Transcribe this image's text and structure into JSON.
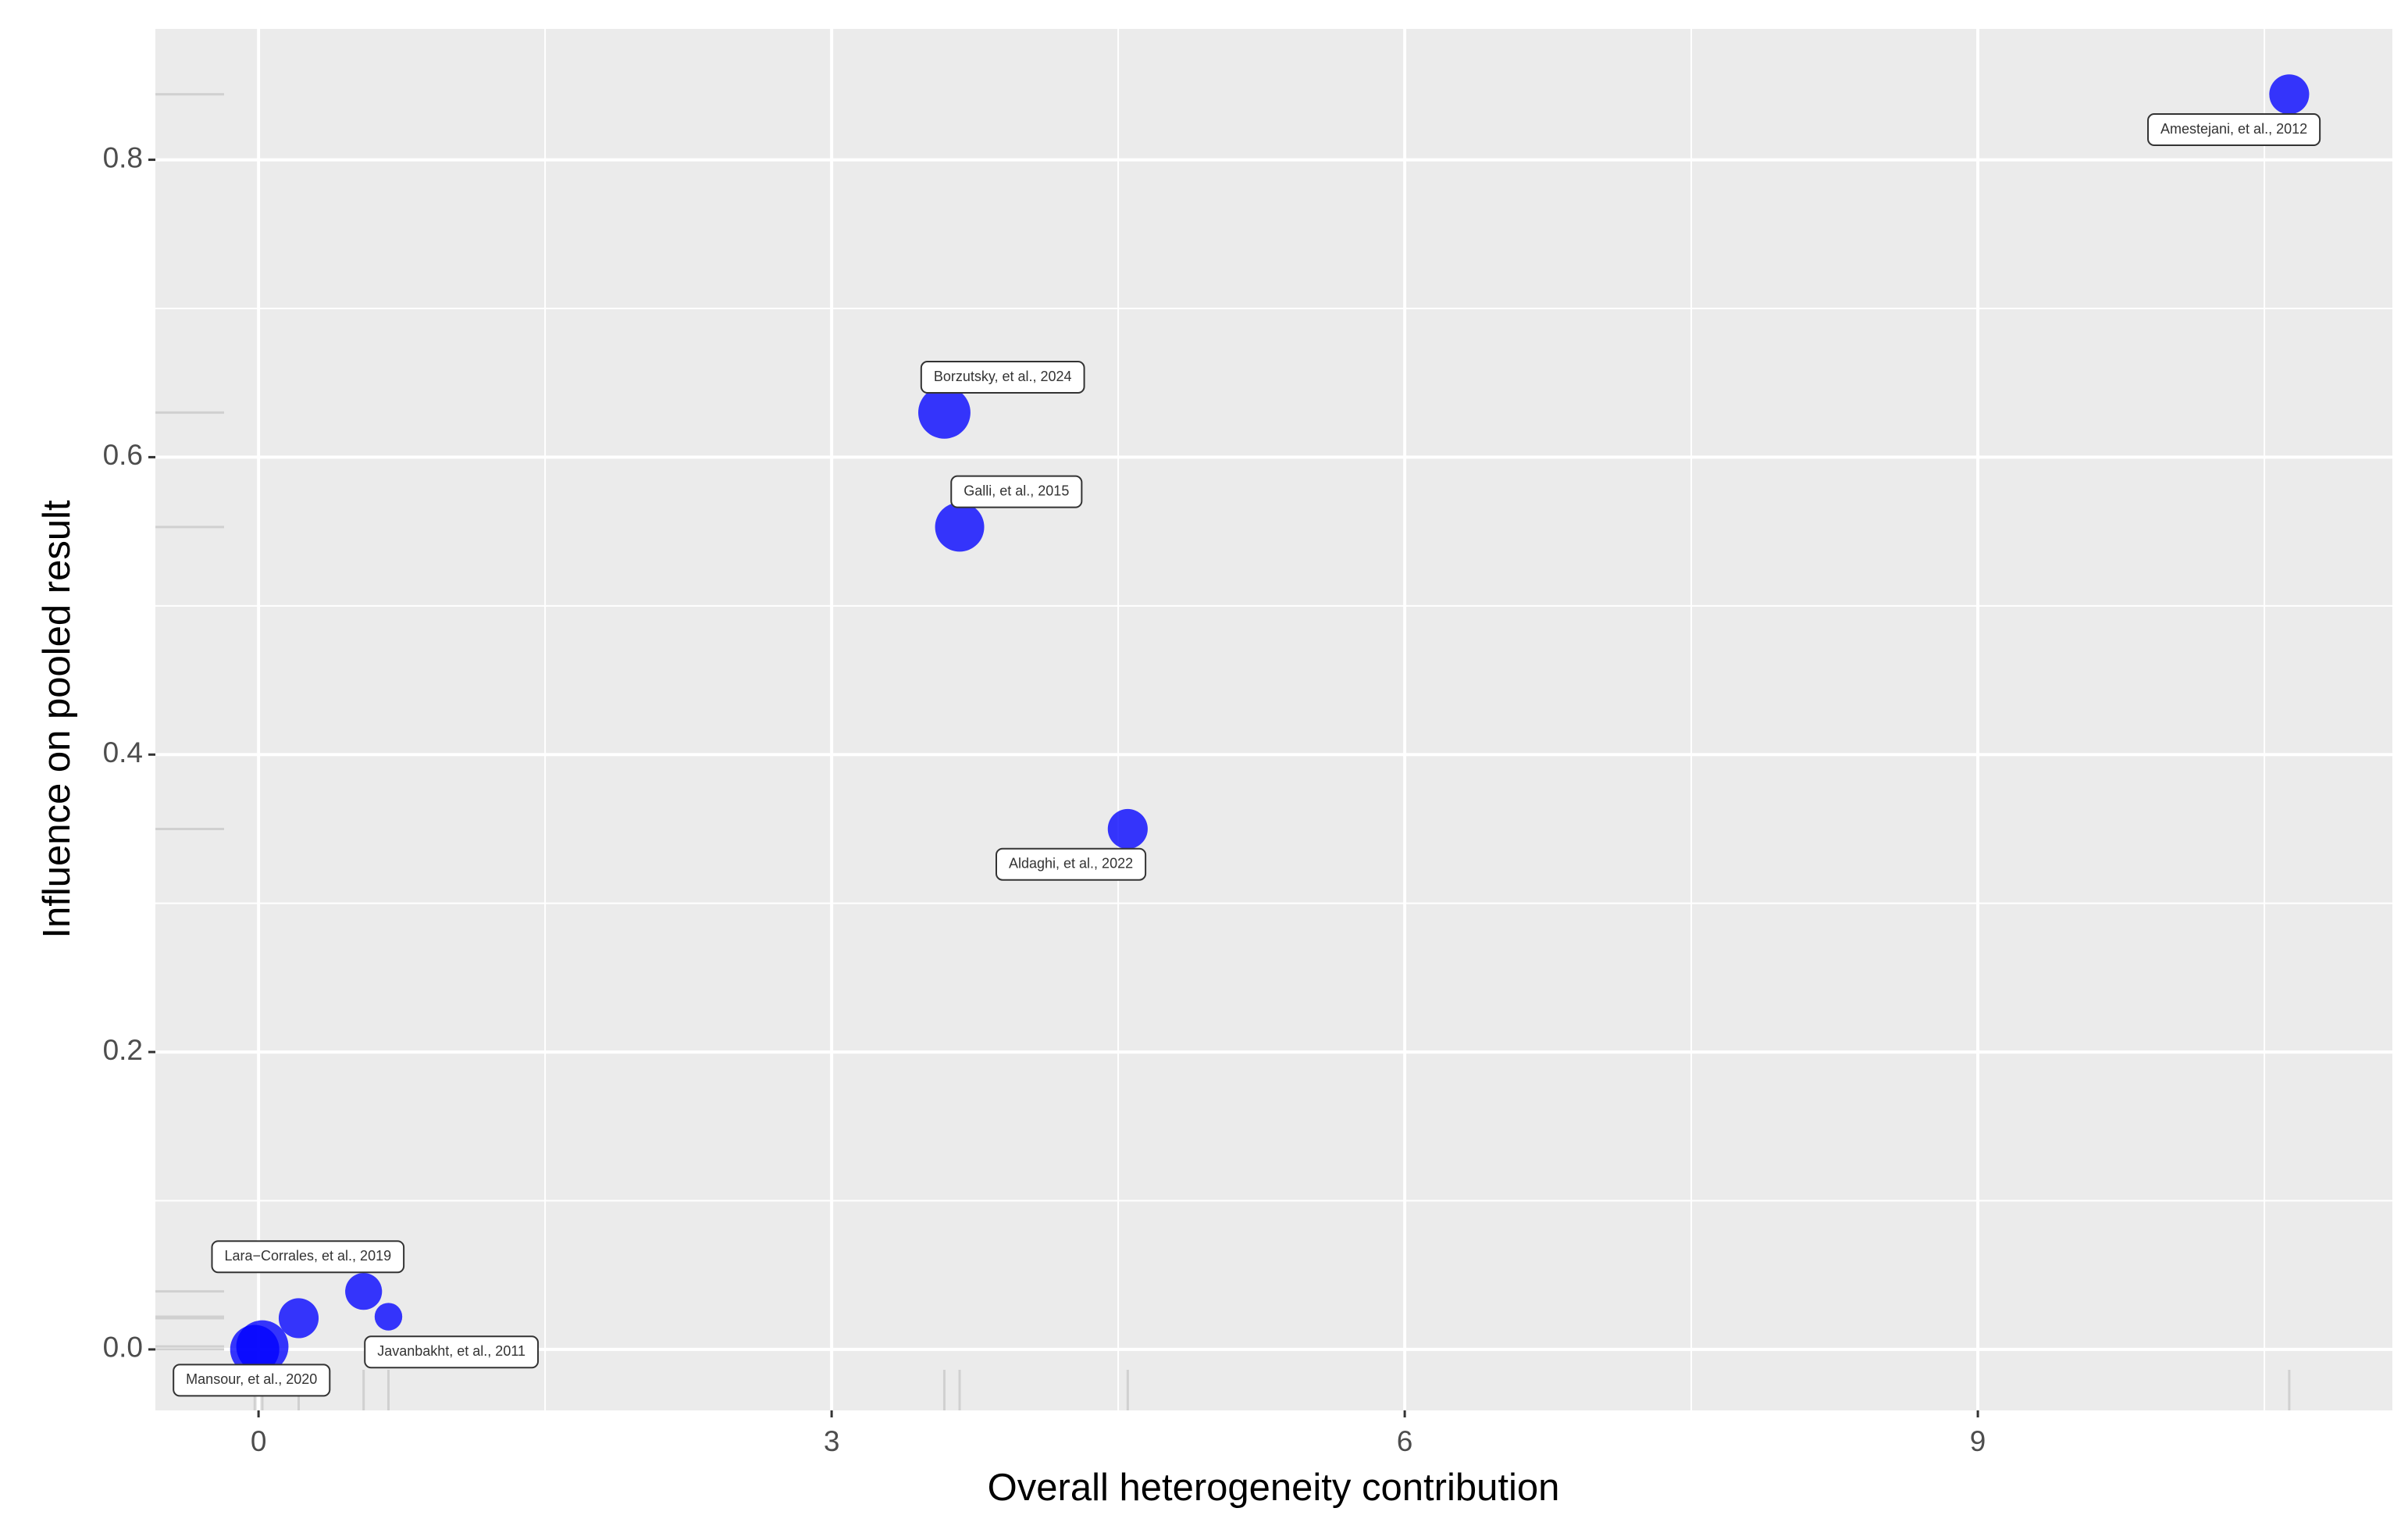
{
  "chart_data": {
    "type": "scatter",
    "x_label": "Overall heterogeneity contribution",
    "y_label": "Influence on pooled result",
    "x": [
      10.63,
      3.59,
      3.67,
      4.55,
      0.21,
      0.55,
      0.68,
      0.02,
      -0.02
    ],
    "values": [
      0.844,
      0.63,
      0.553,
      0.35,
      0.021,
      0.039,
      0.022,
      0.002,
      0.0
    ],
    "sizes": [
      13,
      17,
      16,
      13,
      13,
      12,
      9,
      17,
      16
    ],
    "labels": [
      "Amestejani, et al., 2012",
      "Borzutsky, et al., 2024",
      "Galli, et al., 2015",
      "Aldaghi, et al., 2022",
      "Lara−Corrales, et al., 2019",
      null,
      "Javanbakht, et al., 2011",
      "Mansour, et al., 2020",
      null
    ],
    "color": "#0000ff",
    "xlim": [
      -0.54,
      11.17
    ],
    "ylim": [
      -0.041,
      0.888
    ],
    "xticks": [
      0,
      3,
      6,
      9
    ],
    "yticks": [
      {
        "value": 0,
        "label": "0.0"
      },
      {
        "value": 0.2,
        "label": "0.2"
      },
      {
        "value": 0.4,
        "label": "0.4"
      },
      {
        "value": 0.6,
        "label": "0.6"
      },
      {
        "value": 0.8,
        "label": "0.8"
      }
    ],
    "grid": true,
    "rug": true
  }
}
